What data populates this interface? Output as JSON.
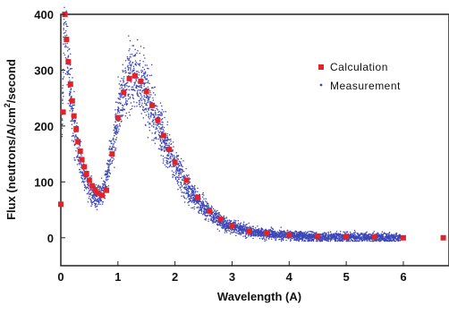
{
  "chart_data": {
    "type": "scatter",
    "title": "",
    "xlabel": "Wavelength (A)",
    "ylabel_main": "Flux (neutrons/A/cm",
    "ylabel_sup": "2",
    "ylabel_tail": "/second",
    "xlim": [
      0,
      6.8
    ],
    "ylim": [
      -50,
      400
    ],
    "x_ticks": [
      0,
      1,
      2,
      3,
      4,
      5,
      6
    ],
    "y_ticks": [
      0,
      100,
      200,
      300,
      400
    ],
    "grid": false,
    "legend_position": "top-right",
    "series": [
      {
        "name": "Calculation",
        "marker": "square",
        "color": "#e0242a",
        "points": [
          [
            0.0,
            60
          ],
          [
            0.04,
            225
          ],
          [
            0.07,
            400
          ],
          [
            0.1,
            355
          ],
          [
            0.13,
            315
          ],
          [
            0.17,
            275
          ],
          [
            0.2,
            245
          ],
          [
            0.23,
            218
          ],
          [
            0.27,
            195
          ],
          [
            0.3,
            172
          ],
          [
            0.34,
            155
          ],
          [
            0.37,
            140
          ],
          [
            0.41,
            127
          ],
          [
            0.45,
            115
          ],
          [
            0.5,
            103
          ],
          [
            0.55,
            93
          ],
          [
            0.6,
            86
          ],
          [
            0.65,
            80
          ],
          [
            0.72,
            76
          ],
          [
            0.8,
            85
          ],
          [
            0.9,
            150
          ],
          [
            1.0,
            215
          ],
          [
            1.1,
            260
          ],
          [
            1.2,
            285
          ],
          [
            1.3,
            290
          ],
          [
            1.4,
            280
          ],
          [
            1.5,
            262
          ],
          [
            1.6,
            237
          ],
          [
            1.7,
            210
          ],
          [
            1.8,
            183
          ],
          [
            1.9,
            158
          ],
          [
            2.0,
            135
          ],
          [
            2.2,
            103
          ],
          [
            2.4,
            72
          ],
          [
            2.6,
            48
          ],
          [
            2.8,
            33
          ],
          [
            3.0,
            22
          ],
          [
            3.3,
            12
          ],
          [
            3.6,
            8
          ],
          [
            4.0,
            5
          ],
          [
            4.5,
            3
          ],
          [
            5.0,
            2
          ],
          [
            5.5,
            1
          ],
          [
            6.0,
            0
          ],
          [
            6.7,
            0
          ]
        ]
      },
      {
        "name": "Measurement",
        "marker": "dot",
        "color": "#3b47b8",
        "curve": [
          [
            0.0,
            0
          ],
          [
            0.03,
            260
          ],
          [
            0.06,
            390
          ],
          [
            0.1,
            340
          ],
          [
            0.15,
            275
          ],
          [
            0.2,
            230
          ],
          [
            0.25,
            190
          ],
          [
            0.3,
            160
          ],
          [
            0.35,
            135
          ],
          [
            0.4,
            115
          ],
          [
            0.45,
            100
          ],
          [
            0.5,
            88
          ],
          [
            0.55,
            80
          ],
          [
            0.6,
            75
          ],
          [
            0.65,
            74
          ],
          [
            0.7,
            76
          ],
          [
            0.75,
            85
          ],
          [
            0.8,
            105
          ],
          [
            0.9,
            160
          ],
          [
            1.0,
            220
          ],
          [
            1.1,
            262
          ],
          [
            1.2,
            285
          ],
          [
            1.3,
            288
          ],
          [
            1.4,
            275
          ],
          [
            1.5,
            255
          ],
          [
            1.6,
            230
          ],
          [
            1.7,
            205
          ],
          [
            1.8,
            178
          ],
          [
            1.9,
            153
          ],
          [
            2.0,
            130
          ],
          [
            2.2,
            92
          ],
          [
            2.4,
            65
          ],
          [
            2.6,
            45
          ],
          [
            2.8,
            30
          ],
          [
            3.0,
            20
          ],
          [
            3.3,
            12
          ],
          [
            3.6,
            7
          ],
          [
            4.0,
            4
          ],
          [
            4.5,
            2
          ],
          [
            5.0,
            1
          ],
          [
            5.5,
            0.5
          ],
          [
            6.0,
            0
          ]
        ],
        "x_range": [
          0.02,
          5.95
        ],
        "point_count": 4500
      }
    ]
  },
  "legend": {
    "calculation_label": "Calculation",
    "measurement_label": "Measurement"
  }
}
